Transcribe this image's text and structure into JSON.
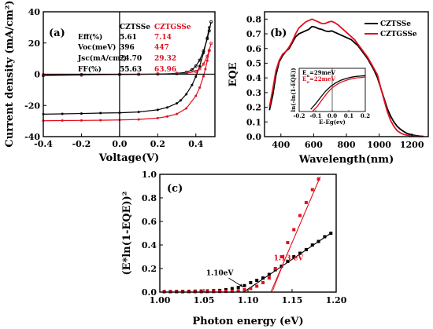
{
  "colors": {
    "czts": "#000000",
    "cztgs": "#e0101e"
  },
  "chart_data": [
    {
      "panel": "(a)",
      "type": "line",
      "xlabel": "Voltage(V)",
      "ylabel": "Current density (mA/cm²)",
      "xlim": [
        -0.4,
        0.5
      ],
      "ylim": [
        -40,
        40
      ],
      "xticks": [
        "-0.4",
        "-0.2",
        "0.0",
        "0.2",
        "0.4"
      ],
      "yticks": [
        "-40",
        "-20",
        "0",
        "20",
        "40"
      ],
      "table": {
        "headers": [
          "",
          "CZTSSe",
          "CZTGSSe"
        ],
        "rows": [
          [
            "Eff(%)",
            "5.61",
            "7.14"
          ],
          [
            "Voc(meV)",
            "396",
            "447"
          ],
          [
            "Jsc(mA/cm²)",
            "24.70",
            "29.32"
          ],
          [
            "FF(%)",
            "55.63",
            "63.96"
          ]
        ]
      },
      "series": [
        {
          "name": "CZTSSe",
          "style": "light",
          "color": "#000000",
          "x": [
            -0.4,
            -0.3,
            -0.2,
            -0.1,
            0,
            0.1,
            0.2,
            0.25,
            0.3,
            0.32,
            0.35,
            0.38,
            0.4,
            0.42,
            0.44,
            0.46,
            0.47
          ],
          "y": [
            -25.6,
            -25.4,
            -25.2,
            -24.9,
            -24.7,
            -24.2,
            -22.8,
            -21.3,
            -18.7,
            -16.8,
            -12.8,
            -6.9,
            -1.5,
            5.2,
            13.5,
            23.5,
            30.0
          ]
        },
        {
          "name": "CZTGSSe",
          "style": "light",
          "color": "#e0101e",
          "x": [
            -0.4,
            -0.3,
            -0.2,
            -0.1,
            0,
            0.1,
            0.2,
            0.25,
            0.3,
            0.35,
            0.4,
            0.42,
            0.44,
            0.45,
            0.46,
            0.47
          ],
          "y": [
            -29.8,
            -29.7,
            -29.6,
            -29.5,
            -29.3,
            -29.0,
            -28.1,
            -27.1,
            -25.5,
            -21.9,
            -13.9,
            -8.6,
            -1.3,
            3.3,
            8.7,
            14.8
          ]
        },
        {
          "name": "CZTSSe",
          "style": "dark",
          "color": "#000000",
          "x": [
            -0.4,
            -0.2,
            0,
            0.1,
            0.2,
            0.3,
            0.35,
            0.38,
            0.4,
            0.42,
            0.44,
            0.46,
            0.47,
            0.48
          ],
          "y": [
            -0.8,
            -0.5,
            -0.2,
            -0.1,
            0.1,
            0.5,
            1.2,
            2.8,
            5.2,
            9.0,
            14.8,
            22.8,
            27.8,
            33.5
          ]
        },
        {
          "name": "CZTGSSe",
          "style": "dark",
          "color": "#e0101e",
          "x": [
            -0.4,
            -0.2,
            0,
            0.1,
            0.2,
            0.3,
            0.35,
            0.4,
            0.42,
            0.44,
            0.46,
            0.47,
            0.48
          ],
          "y": [
            -0.3,
            -0.2,
            -0.1,
            0,
            0.1,
            0.3,
            0.6,
            1.8,
            3.5,
            6.5,
            11.5,
            15.2,
            19.8
          ]
        }
      ]
    },
    {
      "panel": "(b)",
      "type": "line",
      "xlabel": "Wavelength(nm)",
      "ylabel": "EQE",
      "xlim": [
        300,
        1300
      ],
      "ylim": [
        0,
        0.85
      ],
      "xticks": [
        "400",
        "600",
        "800",
        "1000",
        "1200"
      ],
      "yticks": [
        "0.0",
        "0.1",
        "0.2",
        "0.3",
        "0.4",
        "0.5",
        "0.6",
        "0.7",
        "0.8"
      ],
      "legend": [
        "CZTSSe",
        "CZTGSSe"
      ],
      "legend_placement": "top-right",
      "series": [
        {
          "name": "CZTSSe",
          "color": "#000000",
          "x": [
            330,
            350,
            370,
            390,
            410,
            430,
            450,
            470,
            490,
            510,
            530,
            550,
            570,
            590,
            610,
            630,
            650,
            670,
            690,
            710,
            730,
            750,
            770,
            790,
            810,
            830,
            850,
            870,
            890,
            910,
            930,
            950,
            970,
            990,
            1010,
            1030,
            1050,
            1070,
            1090,
            1110,
            1130,
            1150,
            1170,
            1190,
            1210,
            1230,
            1250,
            1270
          ],
          "y": [
            0.18,
            0.28,
            0.42,
            0.51,
            0.55,
            0.58,
            0.6,
            0.64,
            0.68,
            0.7,
            0.71,
            0.72,
            0.73,
            0.75,
            0.745,
            0.735,
            0.73,
            0.72,
            0.715,
            0.72,
            0.71,
            0.7,
            0.69,
            0.68,
            0.67,
            0.66,
            0.64,
            0.62,
            0.59,
            0.56,
            0.53,
            0.49,
            0.45,
            0.4,
            0.33,
            0.26,
            0.19,
            0.14,
            0.1,
            0.07,
            0.05,
            0.035,
            0.022,
            0.015,
            0.01,
            0.006,
            0.003,
            0.002
          ]
        },
        {
          "name": "CZTGSSe",
          "color": "#e0101e",
          "x": [
            330,
            350,
            370,
            390,
            410,
            430,
            450,
            470,
            490,
            510,
            530,
            550,
            570,
            590,
            610,
            630,
            650,
            670,
            690,
            710,
            730,
            750,
            770,
            790,
            810,
            830,
            850,
            870,
            890,
            910,
            930,
            950,
            970,
            990,
            1010,
            1030,
            1050,
            1070,
            1090,
            1110,
            1130,
            1150,
            1170,
            1190,
            1210,
            1230,
            1250,
            1270
          ],
          "y": [
            0.2,
            0.32,
            0.45,
            0.52,
            0.56,
            0.58,
            0.61,
            0.65,
            0.7,
            0.74,
            0.76,
            0.78,
            0.79,
            0.8,
            0.79,
            0.78,
            0.77,
            0.77,
            0.78,
            0.785,
            0.775,
            0.76,
            0.74,
            0.72,
            0.7,
            0.68,
            0.66,
            0.63,
            0.6,
            0.57,
            0.54,
            0.5,
            0.46,
            0.42,
            0.33,
            0.25,
            0.17,
            0.11,
            0.07,
            0.04,
            0.025,
            0.015,
            0.01,
            0.006,
            0.004,
            0.002,
            0.001,
            0.001
          ]
        }
      ],
      "inset": {
        "xlabel": "E-Eg(ev)",
        "ylabel": "ln(-ln(1-EQE))",
        "xlim": [
          -0.2,
          0.2
        ],
        "xticks": [
          "-0.2",
          "-0.1",
          "0.0",
          "0.1",
          "0.2"
        ],
        "annotations": [
          {
            "label_E": "E",
            "label_sub": "u",
            "label_val": "=29meV",
            "color": "#000000"
          },
          {
            "label_E": "E",
            "label_sub": "u",
            "label_val": "=22meV",
            "color": "#e0101e"
          }
        ],
        "series": [
          {
            "name": "CZTSSe",
            "color": "#000000",
            "x": [
              -0.13,
              -0.1,
              -0.07,
              -0.04,
              -0.01,
              0.02,
              0.05,
              0.08,
              0.11,
              0.14,
              0.17,
              0.2
            ],
            "y": [
              0.05,
              0.18,
              0.33,
              0.47,
              0.58,
              0.66,
              0.72,
              0.76,
              0.79,
              0.81,
              0.82,
              0.83
            ]
          },
          {
            "name": "CZTGSSe",
            "color": "#e0101e",
            "x": [
              -0.12,
              -0.09,
              -0.06,
              -0.03,
              0.0,
              0.03,
              0.06,
              0.09,
              0.12,
              0.15,
              0.18,
              0.2
            ],
            "y": [
              0.0,
              0.12,
              0.28,
              0.43,
              0.55,
              0.63,
              0.69,
              0.73,
              0.76,
              0.78,
              0.79,
              0.8
            ]
          }
        ]
      }
    },
    {
      "panel": "(c)",
      "type": "scatter",
      "xlabel": "Photon energy (eV)",
      "ylabel": "(E*ln(1-EQE))²",
      "xlim": [
        1.0,
        1.2
      ],
      "ylim": [
        0,
        1.0
      ],
      "xticks": [
        "1.00",
        "1.05",
        "1.10",
        "1.15",
        "1.20"
      ],
      "yticks": [
        "0.0",
        "0.2",
        "0.4",
        "0.6",
        "0.8",
        "1.0"
      ],
      "annotations": [
        {
          "text": "1.10eV",
          "x": 1.1,
          "color": "#000000"
        },
        {
          "text": "1.13 eV",
          "x": 1.13,
          "color": "#e0101e"
        }
      ],
      "series": [
        {
          "name": "CZTSSe",
          "color": "#000000",
          "x": [
            1.005,
            1.012,
            1.019,
            1.026,
            1.033,
            1.04,
            1.047,
            1.054,
            1.061,
            1.068,
            1.075,
            1.082,
            1.089,
            1.096,
            1.103,
            1.11,
            1.117,
            1.124,
            1.131,
            1.138,
            1.145,
            1.152,
            1.159,
            1.166,
            1.173,
            1.18,
            1.187,
            1.194
          ],
          "y": [
            0.005,
            0.005,
            0.006,
            0.006,
            0.007,
            0.008,
            0.009,
            0.01,
            0.012,
            0.014,
            0.02,
            0.03,
            0.04,
            0.055,
            0.08,
            0.1,
            0.12,
            0.15,
            0.19,
            0.22,
            0.26,
            0.3,
            0.33,
            0.36,
            0.4,
            0.43,
            0.47,
            0.5
          ],
          "fit": {
            "x": [
              1.095,
              1.195
            ],
            "y": [
              0.0,
              0.505
            ]
          }
        },
        {
          "name": "CZTGSSe",
          "color": "#e0101e",
          "x": [
            1.005,
            1.012,
            1.019,
            1.026,
            1.033,
            1.04,
            1.047,
            1.054,
            1.061,
            1.068,
            1.075,
            1.082,
            1.089,
            1.096,
            1.103,
            1.11,
            1.117,
            1.124,
            1.131,
            1.138,
            1.145,
            1.152,
            1.159,
            1.166,
            1.173,
            1.18
          ],
          "y": [
            0.002,
            0.002,
            0.002,
            0.002,
            0.003,
            0.003,
            0.003,
            0.004,
            0.004,
            0.005,
            0.006,
            0.008,
            0.012,
            0.02,
            0.03,
            0.05,
            0.08,
            0.12,
            0.2,
            0.3,
            0.42,
            0.53,
            0.65,
            0.76,
            0.87,
            0.96
          ],
          "fit": {
            "x": [
              1.126,
              1.182
            ],
            "y": [
              0.0,
              0.98
            ]
          }
        }
      ]
    }
  ]
}
